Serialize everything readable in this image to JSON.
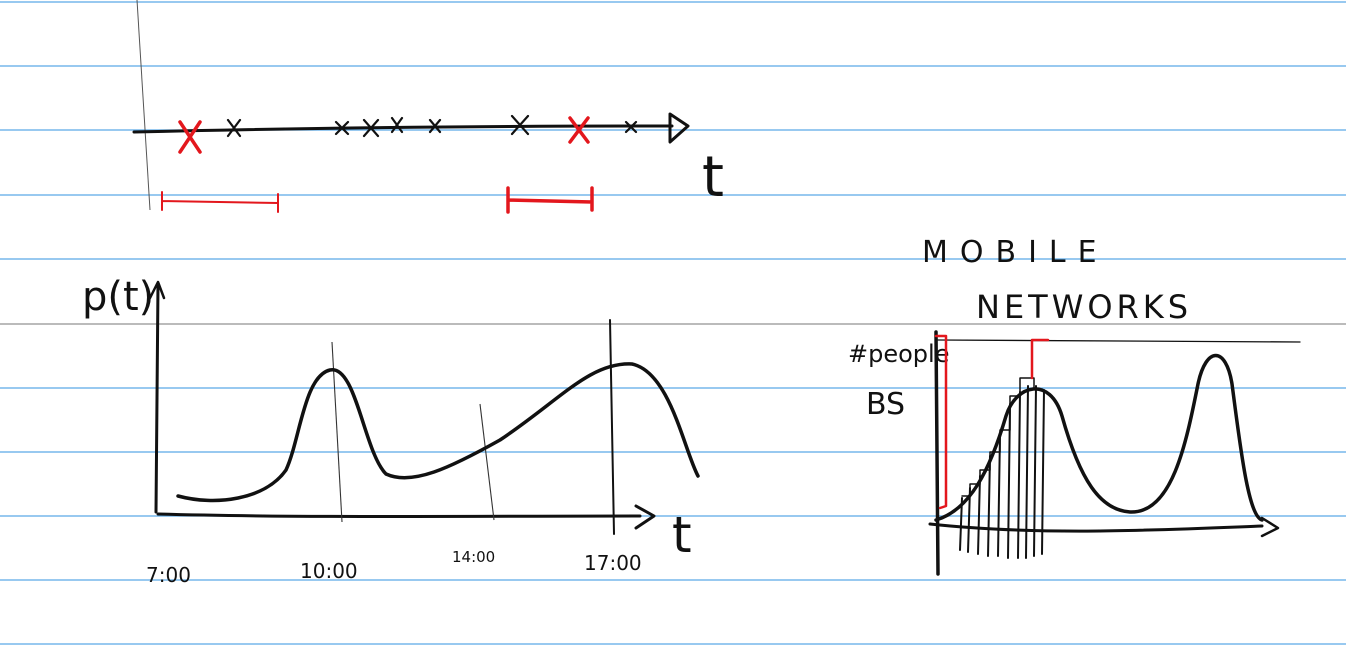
{
  "colors": {
    "paper": "#ffffff",
    "ruling": "#5aa9e6",
    "ink": "#111111",
    "accent": "#e3171d",
    "pen_separator": "#777777"
  },
  "timeline": {
    "axis_label": "t"
  },
  "probability_plot": {
    "y_label": "p(t)",
    "x_label": "t",
    "tick_labels": [
      "7:00",
      "10:00",
      "14:00",
      "17:00"
    ]
  },
  "mobile_networks": {
    "title_line1": "MOBILE",
    "title_line2": "NETWORKS",
    "y_label_line1": "#people",
    "y_label_line2": "BS"
  }
}
